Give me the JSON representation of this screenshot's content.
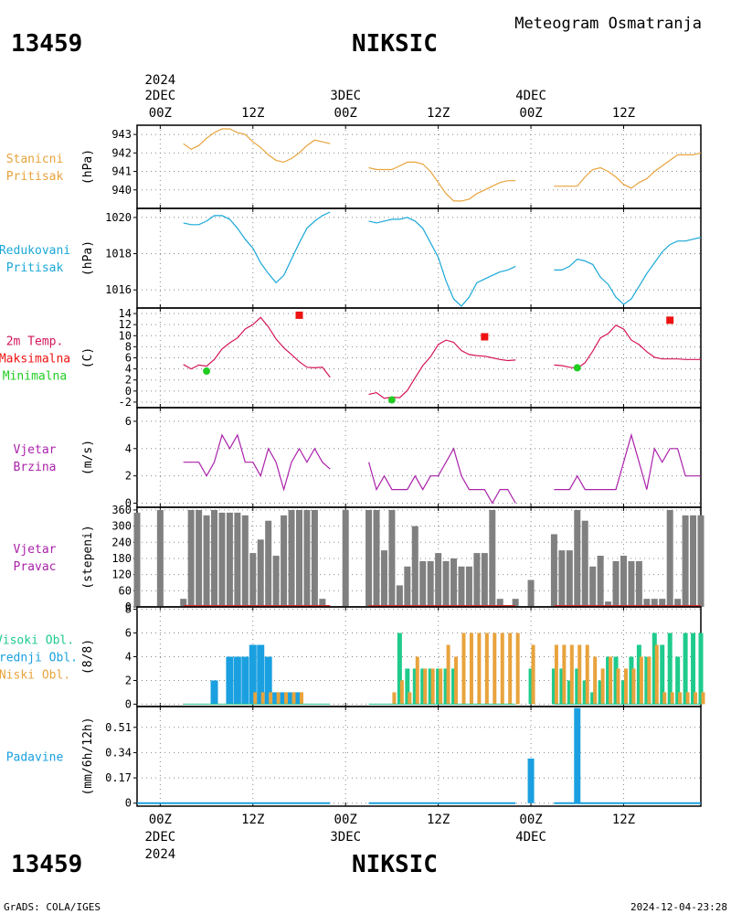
{
  "header": {
    "station_id": "13459",
    "station_name": "NIKSIC",
    "product": "Meteogram Osmatranja"
  },
  "footer": {
    "station_id": "13459",
    "station_name": "NIKSIC",
    "credit": "GrADS: COLA/IGES",
    "timestamp": "2024-12-04-23:28"
  },
  "time_axis": {
    "year": "2024",
    "day_labels": [
      "2DEC",
      "3DEC",
      "4DEC"
    ],
    "hour_labels": [
      "00Z",
      "12Z",
      "00Z",
      "12Z",
      "00Z",
      "12Z"
    ],
    "hours": [
      0,
      12,
      24,
      36,
      48,
      60
    ],
    "range_hours": [
      -3,
      70
    ]
  },
  "colors": {
    "station_pressure": "#e8a33c",
    "reduced_pressure": "#1aa8d8",
    "temperature": "#d4145a",
    "tmax": "#ee1111",
    "tmin": "#22cc22",
    "wind": "#aa22aa",
    "wind_dir_bar": "#808080",
    "wind_dir_base": "#cc3333",
    "high_cloud": "#1ecb8c",
    "mid_cloud": "#1aa0e0",
    "low_cloud": "#e8a33c",
    "precip": "#1aa0e0"
  },
  "chart_data": [
    {
      "type": "line",
      "label": [
        "Stanicni",
        "Pritisak"
      ],
      "unit": "(hPa)",
      "ylim": [
        939.0,
        943.5
      ],
      "yticks": [
        940,
        941,
        942,
        943
      ],
      "grid": true,
      "series": [
        {
          "x": [
            3,
            4,
            5,
            6,
            7,
            8,
            9,
            10,
            11,
            12,
            13,
            14,
            15,
            16,
            17,
            18,
            19,
            20,
            21,
            22
          ],
          "values": [
            942.5,
            942.2,
            942.4,
            942.8,
            943.1,
            943.3,
            943.3,
            943.1,
            943.0,
            942.6,
            942.3,
            941.9,
            941.6,
            941.5,
            941.7,
            942.0,
            942.4,
            942.7,
            942.6,
            942.5
          ]
        },
        {
          "x": [
            27,
            28,
            29,
            30,
            31,
            32,
            33,
            34,
            35,
            36,
            37,
            38,
            39,
            40,
            41,
            42,
            43,
            44,
            45,
            46
          ],
          "values": [
            941.2,
            941.1,
            941.1,
            941.1,
            941.3,
            941.5,
            941.5,
            941.4,
            941.0,
            940.4,
            939.8,
            939.4,
            939.4,
            939.5,
            939.8,
            940.0,
            940.2,
            940.4,
            940.5,
            940.5
          ]
        },
        {
          "x": [
            51,
            52,
            53,
            54,
            55,
            56,
            57,
            58,
            59,
            60,
            61,
            62,
            63,
            64,
            65,
            66,
            67,
            68,
            69,
            70
          ],
          "values": [
            940.2,
            940.2,
            940.2,
            940.2,
            940.7,
            941.1,
            941.2,
            941.0,
            940.7,
            940.3,
            940.1,
            940.4,
            940.6,
            941.0,
            941.3,
            941.6,
            941.9,
            941.9,
            941.9,
            942.0
          ]
        }
      ]
    },
    {
      "type": "line",
      "label": [
        "Redukovani",
        "Pritisak"
      ],
      "unit": "(hPa)",
      "ylim": [
        1015.0,
        1020.5
      ],
      "yticks": [
        1016,
        1018,
        1020
      ],
      "grid": true,
      "series": [
        {
          "x": [
            3,
            4,
            5,
            6,
            7,
            8,
            9,
            10,
            11,
            12,
            13,
            14,
            15,
            16,
            17,
            18,
            19,
            20,
            21,
            22
          ],
          "values": [
            1019.7,
            1019.6,
            1019.6,
            1019.8,
            1020.1,
            1020.1,
            1019.9,
            1019.4,
            1018.8,
            1018.3,
            1017.5,
            1016.9,
            1016.4,
            1016.8,
            1017.7,
            1018.6,
            1019.4,
            1019.8,
            1020.1,
            1020.3
          ]
        },
        {
          "x": [
            27,
            28,
            29,
            30,
            31,
            32,
            33,
            34,
            35,
            36,
            37,
            38,
            39,
            40,
            41,
            42,
            43,
            44,
            45,
            46
          ],
          "values": [
            1019.8,
            1019.7,
            1019.8,
            1019.9,
            1019.9,
            1020.0,
            1019.8,
            1019.4,
            1018.6,
            1017.8,
            1016.5,
            1015.5,
            1015.1,
            1015.6,
            1016.4,
            1016.6,
            1016.8,
            1017.0,
            1017.1,
            1017.3
          ]
        },
        {
          "x": [
            51,
            52,
            53,
            54,
            55,
            56,
            57,
            58,
            59,
            60,
            61,
            62,
            63,
            64,
            65,
            66,
            67,
            68,
            69,
            70
          ],
          "values": [
            1017.1,
            1017.1,
            1017.3,
            1017.7,
            1017.6,
            1017.4,
            1016.7,
            1016.3,
            1015.6,
            1015.2,
            1015.5,
            1016.2,
            1016.9,
            1017.5,
            1018.1,
            1018.5,
            1018.7,
            1018.7,
            1018.8,
            1018.9
          ]
        }
      ]
    },
    {
      "type": "line",
      "label": [
        "2m Temp.",
        "Maksimalna",
        "Minimalna"
      ],
      "unit": "(C)",
      "ylim": [
        -3,
        15
      ],
      "yticks": [
        -2,
        0,
        2,
        4,
        6,
        8,
        10,
        12,
        14
      ],
      "grid": true,
      "series": [
        {
          "x": [
            3,
            4,
            5,
            6,
            7,
            8,
            9,
            10,
            11,
            12,
            13,
            14,
            15,
            16,
            17,
            18,
            19,
            20,
            21,
            22
          ],
          "values": [
            4.8,
            4.0,
            4.7,
            4.5,
            5.7,
            7.6,
            8.7,
            9.6,
            11.2,
            12.0,
            13.3,
            11.6,
            9.4,
            7.8,
            6.6,
            5.3,
            4.3,
            4.2,
            4.3,
            2.5
          ]
        },
        {
          "x": [
            27,
            28,
            29,
            30,
            31,
            32,
            33,
            34,
            35,
            36,
            37,
            38,
            39,
            40,
            41,
            42,
            43,
            44,
            45,
            46
          ],
          "values": [
            -0.6,
            -0.3,
            -1.3,
            -1.1,
            -1.2,
            0.1,
            2.4,
            4.6,
            6.2,
            8.4,
            9.2,
            8.8,
            7.3,
            6.6,
            6.4,
            6.3,
            6.0,
            5.7,
            5.5,
            5.6
          ]
        },
        {
          "x": [
            51,
            52,
            53,
            54,
            55,
            56,
            57,
            58,
            59,
            60,
            61,
            62,
            63,
            64,
            65,
            66,
            67,
            68,
            69,
            70
          ],
          "values": [
            4.7,
            4.6,
            4.3,
            4.1,
            5.1,
            7.2,
            9.6,
            10.4,
            11.9,
            11.2,
            9.2,
            8.4,
            7.1,
            6.1,
            5.8,
            5.8,
            5.8,
            5.7,
            5.7,
            5.7
          ]
        }
      ],
      "tmax": [
        {
          "x": 18,
          "value": 13.7
        },
        {
          "x": 42,
          "value": 9.8
        },
        {
          "x": 66,
          "value": 12.8
        }
      ],
      "tmin": [
        {
          "x": 6,
          "value": 3.6
        },
        {
          "x": 30,
          "value": -1.6
        },
        {
          "x": 54,
          "value": 4.2
        }
      ]
    },
    {
      "type": "line",
      "label": [
        "Vjetar",
        "Brzina"
      ],
      "unit": "(m/s)",
      "ylim": [
        -0.3,
        7.0
      ],
      "yticks": [
        0,
        2,
        4,
        6
      ],
      "grid": true,
      "series": [
        {
          "x": [
            3,
            4,
            5,
            6,
            7,
            8,
            9,
            10,
            11,
            12,
            13,
            14,
            15,
            16,
            17,
            18,
            19,
            20,
            21,
            22
          ],
          "values": [
            3,
            3,
            3,
            2,
            3,
            5,
            4,
            5,
            3,
            3,
            2,
            4,
            3,
            1,
            3,
            4,
            3,
            4,
            3,
            2.5
          ]
        },
        {
          "x": [
            27,
            28,
            29,
            30,
            31,
            32,
            33,
            34,
            35,
            36,
            37,
            38,
            39,
            40,
            41,
            42,
            43,
            44,
            45,
            46
          ],
          "values": [
            3,
            1,
            2,
            1,
            1,
            1,
            2,
            1,
            2,
            2,
            3,
            4,
            2,
            1,
            1,
            1,
            0,
            1,
            1,
            0
          ]
        },
        {
          "x": [
            51,
            52,
            53,
            54,
            55,
            56,
            57,
            58,
            59,
            60,
            61,
            62,
            63,
            64,
            65,
            66,
            67,
            68,
            69,
            70
          ],
          "values": [
            1,
            1,
            1,
            2,
            1,
            1,
            1,
            1,
            1,
            3,
            5,
            3,
            1,
            4,
            3,
            4,
            4,
            2,
            2,
            2
          ]
        }
      ]
    },
    {
      "type": "bar",
      "label": [
        "Vjetar",
        "Pravac"
      ],
      "unit": "(stepeni)",
      "ylim": [
        0,
        370
      ],
      "yticks": [
        0,
        60,
        120,
        180,
        240,
        300,
        360
      ],
      "grid": true,
      "bars": {
        "x": [
          -3,
          0,
          3,
          4,
          5,
          6,
          7,
          8,
          9,
          10,
          11,
          12,
          13,
          14,
          15,
          16,
          17,
          18,
          19,
          20,
          21,
          22,
          24,
          27,
          28,
          29,
          30,
          31,
          32,
          33,
          34,
          35,
          36,
          37,
          38,
          39,
          40,
          41,
          42,
          43,
          44,
          45,
          46,
          48,
          51,
          52,
          53,
          54,
          55,
          56,
          57,
          58,
          59,
          60,
          61,
          62,
          63,
          64,
          65,
          66,
          67,
          68,
          69,
          70
        ],
        "values": [
          350,
          360,
          30,
          360,
          360,
          340,
          360,
          350,
          350,
          350,
          340,
          200,
          250,
          320,
          190,
          340,
          360,
          360,
          360,
          360,
          30,
          0,
          360,
          360,
          360,
          210,
          360,
          80,
          150,
          300,
          170,
          170,
          200,
          170,
          180,
          150,
          150,
          200,
          200,
          360,
          30,
          0,
          30,
          100,
          270,
          210,
          210,
          360,
          320,
          150,
          190,
          20,
          170,
          190,
          170,
          170,
          30,
          30,
          30,
          360,
          30,
          340,
          340,
          340
        ]
      },
      "base_segments": [
        [
          3,
          22
        ],
        [
          27,
          46
        ],
        [
          51,
          70
        ]
      ]
    },
    {
      "type": "bar",
      "label": [
        "Visoki Obl.",
        "Srednji Obl.",
        "Niski Obl."
      ],
      "unit": "(8/8)",
      "ylim": [
        -0.2,
        8.2
      ],
      "yticks": [
        0,
        2,
        4,
        6,
        8
      ],
      "grid": true,
      "x": [
        3,
        4,
        5,
        6,
        7,
        8,
        9,
        10,
        11,
        12,
        13,
        14,
        15,
        16,
        17,
        18,
        19,
        20,
        21,
        22,
        27,
        28,
        29,
        30,
        31,
        32,
        33,
        34,
        35,
        36,
        37,
        38,
        39,
        40,
        41,
        42,
        43,
        44,
        45,
        46,
        48,
        51,
        52,
        53,
        54,
        55,
        56,
        57,
        58,
        59,
        60,
        61,
        62,
        63,
        64,
        65,
        66,
        67,
        68,
        69,
        70
      ],
      "series": [
        {
          "name": "Visoki Obl.",
          "values": [
            0,
            0,
            0,
            0,
            0,
            0,
            0,
            0,
            0,
            0,
            0,
            0,
            0,
            0,
            0,
            0,
            0,
            0,
            0,
            0,
            0,
            0,
            0,
            0,
            6,
            3,
            3,
            3,
            3,
            3,
            3,
            3,
            0,
            0,
            0,
            0,
            0,
            0,
            0,
            0,
            3,
            3,
            3,
            2,
            3,
            2,
            1,
            2,
            4,
            4,
            2,
            4,
            5,
            4,
            6,
            5,
            6,
            4,
            6,
            6,
            6
          ]
        },
        {
          "name": "Srednji Obl.",
          "values": [
            0,
            0,
            0,
            0,
            2,
            0,
            4,
            4,
            4,
            5,
            5,
            4,
            1,
            1,
            1,
            1,
            0,
            0,
            0,
            0,
            0,
            0,
            0,
            0,
            0,
            0,
            0,
            0,
            0,
            0,
            0,
            0,
            0,
            0,
            0,
            0,
            0,
            0,
            0,
            0,
            0,
            0,
            0,
            0,
            0,
            0,
            0,
            0,
            0,
            0,
            0,
            0,
            0,
            0,
            0,
            0,
            0,
            0,
            0,
            0,
            0
          ]
        },
        {
          "name": "Niski Obl.",
          "values": [
            0,
            0,
            0,
            0,
            0,
            0,
            0,
            0,
            0,
            1,
            1,
            1,
            1,
            1,
            1,
            1,
            0,
            0,
            0,
            0,
            0,
            0,
            0,
            1,
            2,
            1,
            4,
            3,
            3,
            3,
            5,
            4,
            6,
            6,
            6,
            6,
            6,
            6,
            6,
            6,
            5,
            5,
            5,
            5,
            5,
            5,
            4,
            3,
            4,
            3,
            3,
            3,
            4,
            4,
            5,
            1,
            1,
            1,
            1,
            1,
            1
          ]
        }
      ]
    },
    {
      "type": "bar",
      "label": [
        "Padavine"
      ],
      "unit": "(mm/6h/12h)",
      "ylim": [
        -0.02,
        0.65
      ],
      "yticks": [
        0,
        0.17,
        0.34,
        0.51
      ],
      "ytick_labels": [
        "0",
        "0.17",
        "0.34",
        "0.51"
      ],
      "grid": true,
      "bars": {
        "x": [
          48,
          54
        ],
        "values": [
          0.3,
          0.64
        ]
      },
      "zero_segments": [
        [
          -3,
          22
        ],
        [
          27,
          46
        ],
        [
          51,
          70
        ]
      ]
    }
  ]
}
